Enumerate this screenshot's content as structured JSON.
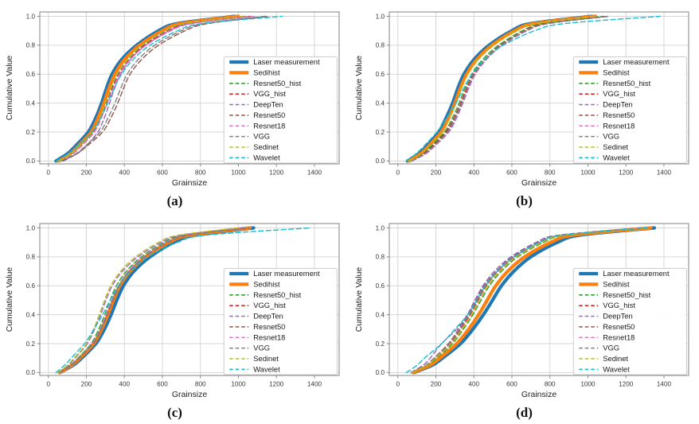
{
  "axes": {
    "xlabel": "Grainsize",
    "ylabel": "Cumulative Value",
    "x_ticks": [
      0,
      200,
      400,
      600,
      800,
      1000,
      1200,
      1400
    ],
    "y_ticks": [
      "0.0",
      "0.2",
      "0.4",
      "0.6",
      "0.8",
      "1.0"
    ],
    "x_range": [
      -45,
      1530
    ],
    "y_range": [
      -0.02,
      1.03
    ],
    "grid": true,
    "grid_color": "#d6d6d6",
    "spine_color": "#8c8c8c",
    "tick_label_color": "#3a3a3a"
  },
  "legend": {
    "position": "center-right",
    "entries": [
      {
        "label": "Laser measurement",
        "color": "#1f77b4",
        "dash": false,
        "thick": true
      },
      {
        "label": "Sedihist",
        "color": "#ff7f0e",
        "dash": false,
        "thick": true
      },
      {
        "label": "Resnet50_hist",
        "color": "#2ca02c",
        "dash": true,
        "thick": false
      },
      {
        "label": "VGG_hist",
        "color": "#d62728",
        "dash": true,
        "thick": false
      },
      {
        "label": "DeepTen",
        "color": "#9467bd",
        "dash": true,
        "thick": false
      },
      {
        "label": "Resnet50",
        "color": "#8c564b",
        "dash": true,
        "thick": false
      },
      {
        "label": "Resnet18",
        "color": "#e377c2",
        "dash": true,
        "thick": false
      },
      {
        "label": "VGG",
        "color": "#7f7f7f",
        "dash": true,
        "thick": false
      },
      {
        "label": "Sedinet",
        "color": "#bcbd22",
        "dash": true,
        "thick": false
      },
      {
        "label": "Wavelet",
        "color": "#17becf",
        "dash": true,
        "thick": false
      }
    ]
  },
  "chart_data": [
    {
      "type": "line",
      "label": "(a)",
      "quantiles_y": [
        0,
        0.05,
        0.1,
        0.2,
        0.3,
        0.4,
        0.5,
        0.6,
        0.7,
        0.8,
        0.9,
        0.95,
        1.0
      ],
      "series": [
        {
          "name": "Laser measurement",
          "x": [
            40,
            100,
            140,
            210,
            250,
            280,
            305,
            335,
            385,
            465,
            580,
            680,
            980
          ]
        },
        {
          "name": "Sedihist",
          "x": [
            55,
            115,
            155,
            225,
            262,
            292,
            318,
            350,
            400,
            480,
            600,
            700,
            1000
          ]
        },
        {
          "name": "Resnet50_hist",
          "x": [
            60,
            125,
            165,
            235,
            272,
            302,
            330,
            362,
            415,
            495,
            615,
            720,
            1030
          ]
        },
        {
          "name": "VGG_hist",
          "x": [
            60,
            128,
            170,
            240,
            278,
            308,
            336,
            370,
            425,
            505,
            630,
            740,
            1060
          ]
        },
        {
          "name": "DeepTen",
          "x": [
            80,
            150,
            195,
            260,
            295,
            322,
            348,
            380,
            432,
            512,
            638,
            748,
            1070
          ]
        },
        {
          "name": "Resnet50",
          "x": [
            70,
            150,
            200,
            285,
            330,
            365,
            395,
            430,
            490,
            580,
            720,
            840,
            1160
          ]
        },
        {
          "name": "Resnet18",
          "x": [
            60,
            130,
            172,
            242,
            280,
            310,
            340,
            375,
            430,
            515,
            645,
            760,
            1090
          ]
        },
        {
          "name": "VGG",
          "x": [
            65,
            145,
            192,
            272,
            315,
            350,
            380,
            415,
            472,
            560,
            700,
            820,
            1140
          ]
        },
        {
          "name": "Sedinet",
          "x": [
            58,
            122,
            162,
            232,
            270,
            300,
            328,
            360,
            412,
            492,
            612,
            718,
            1025
          ]
        },
        {
          "name": "Wavelet",
          "x": [
            42,
            105,
            150,
            230,
            275,
            312,
            345,
            385,
            445,
            535,
            680,
            810,
            1230
          ]
        }
      ]
    },
    {
      "type": "line",
      "label": "(b)",
      "quantiles_y": [
        0,
        0.05,
        0.1,
        0.2,
        0.3,
        0.4,
        0.5,
        0.6,
        0.7,
        0.8,
        0.9,
        0.95,
        1.0
      ],
      "series": [
        {
          "name": "Laser measurement",
          "x": [
            50,
            110,
            150,
            215,
            255,
            288,
            315,
            348,
            400,
            480,
            600,
            700,
            1020
          ]
        },
        {
          "name": "Sedihist",
          "x": [
            60,
            120,
            160,
            228,
            268,
            300,
            328,
            362,
            415,
            495,
            615,
            720,
            1040
          ]
        },
        {
          "name": "Resnet50_hist",
          "x": [
            65,
            130,
            172,
            245,
            288,
            322,
            352,
            388,
            445,
            530,
            655,
            765,
            1080
          ]
        },
        {
          "name": "VGG_hist",
          "x": [
            68,
            135,
            178,
            252,
            296,
            330,
            360,
            396,
            455,
            540,
            668,
            780,
            1100
          ]
        },
        {
          "name": "DeepTen",
          "x": [
            75,
            148,
            192,
            268,
            310,
            342,
            372,
            408,
            465,
            550,
            680,
            795,
            1115
          ]
        },
        {
          "name": "Resnet50",
          "x": [
            70,
            140,
            182,
            258,
            300,
            334,
            365,
            400,
            460,
            545,
            672,
            786,
            1105
          ]
        },
        {
          "name": "Resnet18",
          "x": [
            72,
            145,
            188,
            262,
            305,
            338,
            368,
            404,
            462,
            548,
            676,
            790,
            1110
          ]
        },
        {
          "name": "VGG",
          "x": [
            70,
            142,
            185,
            260,
            302,
            336,
            366,
            402,
            460,
            546,
            674,
            788,
            1108
          ]
        },
        {
          "name": "Sedinet",
          "x": [
            62,
            124,
            164,
            234,
            274,
            306,
            334,
            368,
            420,
            500,
            622,
            728,
            1050
          ]
        },
        {
          "name": "Wavelet",
          "x": [
            45,
            95,
            135,
            205,
            258,
            305,
            345,
            390,
            455,
            555,
            720,
            880,
            1380
          ]
        }
      ]
    },
    {
      "type": "line",
      "label": "(c)",
      "quantiles_y": [
        0,
        0.05,
        0.1,
        0.2,
        0.3,
        0.4,
        0.5,
        0.6,
        0.7,
        0.8,
        0.9,
        0.95,
        1.0
      ],
      "series": [
        {
          "name": "Laser measurement",
          "x": [
            60,
            130,
            175,
            250,
            295,
            330,
            360,
            395,
            450,
            535,
            660,
            775,
            1080
          ]
        },
        {
          "name": "Sedihist",
          "x": [
            58,
            122,
            165,
            238,
            280,
            313,
            342,
            376,
            430,
            512,
            635,
            745,
            1060
          ]
        },
        {
          "name": "Resnet50_hist",
          "x": [
            55,
            115,
            155,
            225,
            265,
            297,
            325,
            358,
            410,
            490,
            610,
            715,
            1035
          ]
        },
        {
          "name": "VGG_hist",
          "x": [
            57,
            120,
            160,
            232,
            274,
            306,
            335,
            370,
            422,
            503,
            625,
            735,
            1050
          ]
        },
        {
          "name": "DeepTen",
          "x": [
            52,
            105,
            140,
            205,
            243,
            275,
            303,
            336,
            390,
            472,
            595,
            700,
            1020
          ]
        },
        {
          "name": "Resnet50",
          "x": [
            58,
            122,
            163,
            236,
            278,
            310,
            340,
            374,
            427,
            508,
            630,
            740,
            1055
          ]
        },
        {
          "name": "Resnet18",
          "x": [
            57,
            118,
            158,
            230,
            272,
            304,
            333,
            368,
            420,
            500,
            622,
            732,
            1048
          ]
        },
        {
          "name": "VGG",
          "x": [
            58,
            121,
            162,
            234,
            276,
            308,
            338,
            372,
            425,
            506,
            628,
            738,
            1052
          ]
        },
        {
          "name": "Sedinet",
          "x": [
            50,
            100,
            135,
            200,
            238,
            268,
            296,
            328,
            380,
            460,
            580,
            685,
            1000
          ]
        },
        {
          "name": "Wavelet",
          "x": [
            40,
            85,
            120,
            190,
            240,
            285,
            325,
            370,
            432,
            525,
            680,
            830,
            1380
          ]
        }
      ]
    },
    {
      "type": "line",
      "label": "(d)",
      "quantiles_y": [
        0,
        0.05,
        0.1,
        0.2,
        0.3,
        0.4,
        0.5,
        0.6,
        0.7,
        0.8,
        0.9,
        0.95,
        1.0
      ],
      "series": [
        {
          "name": "Laser measurement",
          "x": [
            85,
            180,
            235,
            330,
            395,
            450,
            498,
            545,
            610,
            700,
            840,
            960,
            1350
          ]
        },
        {
          "name": "Sedihist",
          "x": [
            80,
            168,
            220,
            310,
            372,
            425,
            470,
            515,
            578,
            668,
            805,
            925,
            1330
          ]
        },
        {
          "name": "Resnet50_hist",
          "x": [
            75,
            155,
            205,
            288,
            345,
            395,
            438,
            482,
            545,
            632,
            768,
            888,
            1310
          ]
        },
        {
          "name": "VGG_hist",
          "x": [
            72,
            148,
            196,
            275,
            330,
            380,
            422,
            465,
            527,
            615,
            750,
            870,
            1300
          ]
        },
        {
          "name": "DeepTen",
          "x": [
            68,
            132,
            170,
            230,
            310,
            365,
            405,
            448,
            508,
            595,
            728,
            845,
            1280
          ]
        },
        {
          "name": "Resnet50",
          "x": [
            72,
            145,
            190,
            265,
            320,
            370,
            412,
            455,
            518,
            605,
            740,
            860,
            1295
          ]
        },
        {
          "name": "Resnet18",
          "x": [
            72,
            146,
            192,
            268,
            324,
            374,
            416,
            460,
            522,
            610,
            745,
            864,
            1298
          ]
        },
        {
          "name": "VGG",
          "x": [
            73,
            147,
            193,
            270,
            326,
            376,
            418,
            462,
            524,
            612,
            748,
            866,
            1300
          ]
        },
        {
          "name": "Sedinet",
          "x": [
            74,
            152,
            200,
            280,
            338,
            388,
            430,
            474,
            537,
            625,
            760,
            880,
            1305
          ]
        },
        {
          "name": "Wavelet",
          "x": [
            45,
            100,
            140,
            230,
            300,
            368,
            415,
            460,
            523,
            612,
            748,
            868,
            1310
          ]
        }
      ]
    }
  ]
}
